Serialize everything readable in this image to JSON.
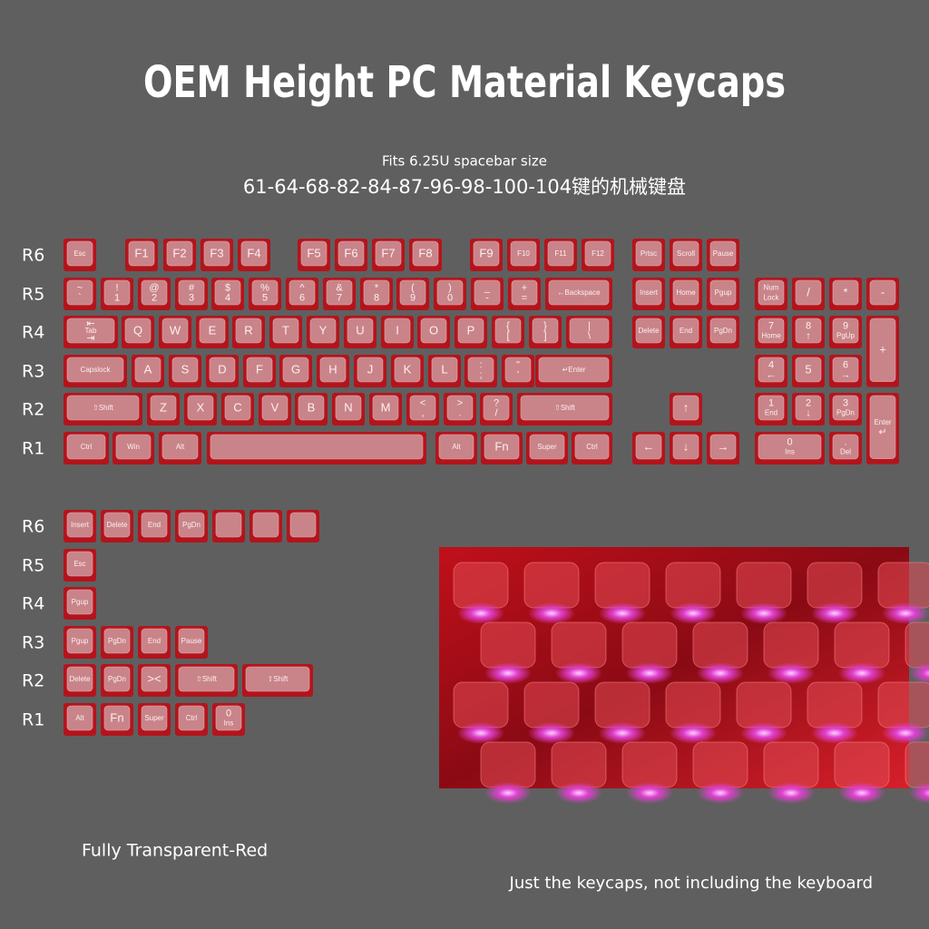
{
  "header": {
    "title": "OEM Height PC Material Keycaps",
    "subtitle": "Fits 6.25U spacebar size",
    "models": "61-64-68-82-84-87-96-98-100-104键的机械键盘"
  },
  "main": {
    "row_labels": [
      "R6",
      "R5",
      "R4",
      "R3",
      "R2",
      "R1"
    ],
    "rows": [
      [
        [
          "Esc"
        ],
        [
          "F1"
        ],
        [
          "F2"
        ],
        [
          "F3"
        ],
        [
          "F4"
        ],
        [
          "F5"
        ],
        [
          "F6"
        ],
        [
          "F7"
        ],
        [
          "F8"
        ],
        [
          "F9"
        ],
        [
          "F10"
        ],
        [
          "F11"
        ],
        [
          "F12"
        ],
        [
          "Prtsc"
        ],
        [
          "Scroll"
        ],
        [
          "Pause"
        ]
      ],
      [
        [
          "~",
          "`"
        ],
        [
          "!",
          "1"
        ],
        [
          "@",
          "2"
        ],
        [
          "#",
          "3"
        ],
        [
          "$",
          "4"
        ],
        [
          "%",
          "5"
        ],
        [
          "^",
          "6"
        ],
        [
          "&",
          "7"
        ],
        [
          "*",
          "8"
        ],
        [
          "(",
          "9"
        ],
        [
          ")",
          "0"
        ],
        [
          "_",
          "-"
        ],
        [
          "+",
          "="
        ],
        [
          "←Backspace"
        ],
        [
          "Insert"
        ],
        [
          "Home"
        ],
        [
          "Pgup"
        ],
        [
          "Num",
          "Lock"
        ],
        [
          "/"
        ],
        [
          "*"
        ],
        [
          "-"
        ]
      ],
      [
        [
          "⇤",
          "Tab",
          "⇥"
        ],
        [
          "Q"
        ],
        [
          "W"
        ],
        [
          "E"
        ],
        [
          "R"
        ],
        [
          "T"
        ],
        [
          "Y"
        ],
        [
          "U"
        ],
        [
          "I"
        ],
        [
          "O"
        ],
        [
          "P"
        ],
        [
          "{",
          "["
        ],
        [
          "}",
          "]"
        ],
        [
          "|",
          "\\"
        ],
        [
          "Delete"
        ],
        [
          "End"
        ],
        [
          "PgDn"
        ],
        [
          "7",
          "Home"
        ],
        [
          "8",
          "↑"
        ],
        [
          "9",
          "PgUp"
        ],
        [
          "+"
        ]
      ],
      [
        [
          "Capslock"
        ],
        [
          "A"
        ],
        [
          "S"
        ],
        [
          "D"
        ],
        [
          "F"
        ],
        [
          "G"
        ],
        [
          "H"
        ],
        [
          "J"
        ],
        [
          "K"
        ],
        [
          "L"
        ],
        [
          ":",
          ";"
        ],
        [
          "\"",
          "'"
        ],
        [
          "↵Enter"
        ],
        [
          "4",
          "←"
        ],
        [
          "5"
        ],
        [
          "6",
          "→"
        ]
      ],
      [
        [
          "⇧Shift"
        ],
        [
          "Z"
        ],
        [
          "X"
        ],
        [
          "C"
        ],
        [
          "V"
        ],
        [
          "B"
        ],
        [
          "N"
        ],
        [
          "M"
        ],
        [
          "<",
          ","
        ],
        [
          ">",
          "."
        ],
        [
          "?",
          "/"
        ],
        [
          "⇧Shift"
        ],
        [
          "↑"
        ],
        [
          "1",
          "End"
        ],
        [
          "2",
          "↓"
        ],
        [
          "3",
          "PgDn"
        ],
        [
          "Enter",
          "↵"
        ]
      ],
      [
        [
          "Ctrl"
        ],
        [
          "Win"
        ],
        [
          "Alt"
        ],
        null,
        [
          "Alt"
        ],
        [
          "Fn"
        ],
        [
          "Super"
        ],
        [
          "Ctrl"
        ],
        [
          "←"
        ],
        [
          "↓"
        ],
        [
          "→"
        ],
        [
          "0",
          "Ins"
        ],
        [
          ".",
          "Del"
        ]
      ]
    ]
  },
  "extra": {
    "row_labels": [
      "R6",
      "R5",
      "R4",
      "R3",
      "R2",
      "R1"
    ],
    "rows": [
      [
        [
          "Insert"
        ],
        [
          "Delete"
        ],
        [
          "End"
        ],
        [
          "PgDn"
        ],
        null,
        null,
        null
      ],
      [
        [
          "Esc"
        ]
      ],
      [
        [
          "Pgup"
        ]
      ],
      [
        [
          "Pgup"
        ],
        [
          "PgDn"
        ],
        [
          "End"
        ],
        [
          "Pause"
        ]
      ],
      [
        [
          "Delete"
        ],
        [
          "PgDn"
        ],
        [
          "><"
        ],
        [
          "⇧Shift"
        ],
        [
          "⇧Shift"
        ]
      ],
      [
        [
          "Alt"
        ],
        [
          "Fn"
        ],
        [
          "Super"
        ],
        [
          "Ctrl"
        ],
        [
          "0",
          "Ins"
        ]
      ]
    ]
  },
  "caption": "Fully Transparent-Red",
  "note": "Just the keycaps, not including the keyboard"
}
